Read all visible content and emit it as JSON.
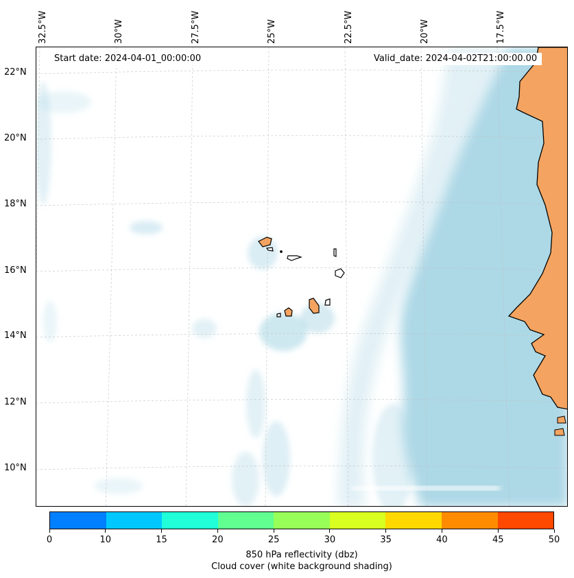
{
  "map": {
    "start_date_label": "Start date: 2024-04-01_00:00:00",
    "valid_date_label": "Valid_date: 2024-04-02T21:00:00.00",
    "longitude_labels": [
      "32.5°W",
      "30°W",
      "27.5°W",
      "25°W",
      "22.5°W",
      "20°W",
      "17.5°W"
    ],
    "latitude_labels": [
      "22°N",
      "20°N",
      "18°N",
      "16°N",
      "14°N",
      "12°N",
      "10°N"
    ],
    "colors": {
      "land": "#f4a460",
      "cloud": "#add8e6",
      "coastline": "#000000",
      "gridline": "#c0c0c0"
    }
  },
  "colorbar": {
    "tick_labels": [
      "0",
      "10",
      "15",
      "20",
      "25",
      "30",
      "35",
      "40",
      "45",
      "50"
    ],
    "colors": [
      "#0080ff",
      "#00c8ff",
      "#20ffd8",
      "#60ff90",
      "#98ff58",
      "#d8ff20",
      "#ffd800",
      "#ff8c00",
      "#ff4800"
    ],
    "title": "850 hPa reflectivity (dbz)",
    "subtitle": "Cloud cover (white background shading)"
  }
}
